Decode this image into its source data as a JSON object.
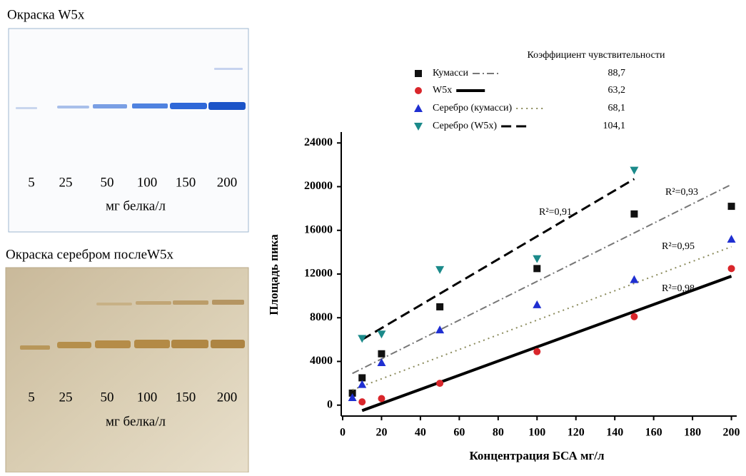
{
  "gels": [
    {
      "title": "Окраска  W5x",
      "lanes": [
        5,
        25,
        50,
        100,
        150,
        200
      ],
      "unit": "мг белка/л"
    },
    {
      "title": "Окраска серебром послеW5x",
      "lanes": [
        5,
        25,
        50,
        100,
        150,
        200
      ],
      "unit": "мг белка/л"
    }
  ],
  "chart_data": {
    "type": "scatter",
    "legend_title": "Коэффициент чувствительности",
    "x_label": "Концентрация БСА мг/л",
    "y_label": "Площадь пика",
    "xlim": [
      0,
      202
    ],
    "ylim": [
      -1000,
      25000
    ],
    "xticks": [
      0,
      20,
      40,
      60,
      80,
      100,
      120,
      140,
      160,
      180,
      200
    ],
    "yticks": [
      0,
      4000,
      8000,
      12000,
      16000,
      20000,
      24000
    ],
    "series": [
      {
        "name": "Кумасси",
        "coefficient": "88,7",
        "color": "#111111",
        "marker": "square",
        "x": [
          5,
          10,
          20,
          50,
          100,
          150,
          200
        ],
        "values": [
          1100,
          2500,
          4700,
          9000,
          12500,
          17500,
          18200
        ],
        "trend": {
          "x": [
            5,
            200
          ],
          "values": [
            2900,
            20200
          ],
          "color": "#777777",
          "style": "dashdot",
          "r2": "R²=0,93"
        }
      },
      {
        "name": "W5x",
        "coefficient": "63,2",
        "color": "#d9262b",
        "marker": "circle",
        "x": [
          10,
          20,
          50,
          100,
          150,
          200
        ],
        "values": [
          300,
          600,
          2000,
          4900,
          8100,
          12500
        ],
        "trend": {
          "x": [
            10,
            200
          ],
          "values": [
            -500,
            11800
          ],
          "color": "#000000",
          "style": "solid",
          "r2": "R²=0,98"
        }
      },
      {
        "name": "Серебро (кумасси)",
        "coefficient": "68,1",
        "color": "#1f2fd1",
        "marker": "triangle-up",
        "x": [
          5,
          10,
          20,
          50,
          100,
          150,
          200
        ],
        "values": [
          700,
          1900,
          3900,
          6900,
          9200,
          11500,
          15200
        ],
        "trend": {
          "x": [
            5,
            200
          ],
          "values": [
            1400,
            14500
          ],
          "color": "#8b8b5c",
          "style": "dotted",
          "r2": "R²=0,95"
        }
      },
      {
        "name": "Серебро (W5x)",
        "coefficient": "104,1",
        "color": "#1b8a8a",
        "marker": "triangle-down",
        "x": [
          10,
          20,
          50,
          100,
          150
        ],
        "values": [
          6100,
          6500,
          12400,
          13400,
          21500
        ],
        "trend": {
          "x": [
            10,
            150
          ],
          "values": [
            6000,
            20700
          ],
          "color": "#000000",
          "style": "dashed",
          "r2": "R²=0,91"
        }
      }
    ]
  }
}
